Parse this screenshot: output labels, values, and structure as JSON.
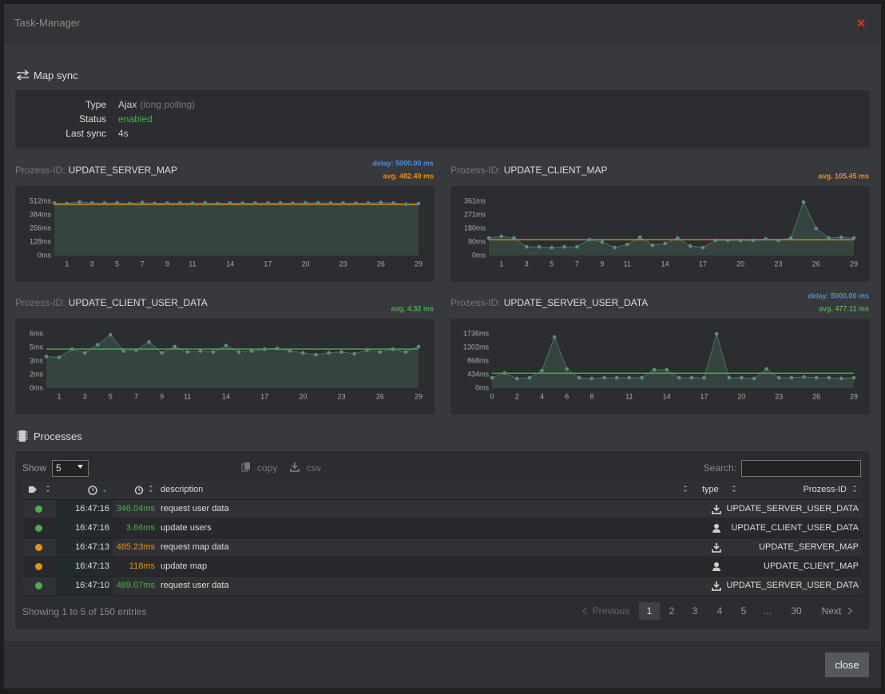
{
  "modal": {
    "title": "Task-Manager",
    "close_button": "close"
  },
  "map_sync": {
    "heading": "Map sync",
    "rows": [
      {
        "label": "Type",
        "value": "Ajax",
        "note": "(long polling)"
      },
      {
        "label": "Status",
        "value": "enabled",
        "value_color": "#4cae4c"
      },
      {
        "label": "Last sync",
        "value": "4s"
      }
    ]
  },
  "charts": [
    {
      "type": "area",
      "prefix": "Prozess-ID:",
      "name": "UPDATE_SERVER_MAP",
      "delay_label": "delay: 5000.00 ms",
      "avg": {
        "value": 482.4,
        "label": "avg. 482.40 ms",
        "color": "#e8901a"
      },
      "x": [
        0,
        1,
        2,
        3,
        4,
        5,
        6,
        7,
        8,
        9,
        10,
        11,
        12,
        13,
        14,
        15,
        16,
        17,
        18,
        19,
        20,
        21,
        22,
        23,
        24,
        25,
        26,
        27,
        28,
        29
      ],
      "values": [
        495,
        490,
        505,
        495,
        495,
        497,
        490,
        500,
        492,
        495,
        495,
        493,
        497,
        490,
        495,
        493,
        495,
        495,
        495,
        493,
        497,
        497,
        495,
        495,
        493,
        495,
        500,
        495,
        485,
        490
      ],
      "xlim": [
        0,
        29
      ],
      "ylim": [
        0,
        512
      ],
      "xticks": [
        1,
        3,
        5,
        7,
        9,
        11,
        14,
        17,
        20,
        23,
        26,
        29
      ],
      "yticks": [
        {
          "value": 0,
          "label": "0ms"
        },
        {
          "value": 128,
          "label": "128ms"
        },
        {
          "value": 256,
          "label": "256ms"
        },
        {
          "value": 384,
          "label": "384ms"
        },
        {
          "value": 512,
          "label": "512ms"
        }
      ]
    },
    {
      "type": "area",
      "prefix": "Prozess-ID:",
      "name": "UPDATE_CLIENT_MAP",
      "avg": {
        "value": 105.45,
        "label": "avg. 105.45 ms",
        "color": "#e8901a"
      },
      "x": [
        0,
        1,
        2,
        3,
        4,
        5,
        6,
        7,
        8,
        9,
        10,
        11,
        12,
        13,
        14,
        15,
        16,
        17,
        18,
        19,
        20,
        21,
        22,
        23,
        24,
        25,
        26,
        27,
        28,
        29
      ],
      "values": [
        117,
        128,
        117,
        58,
        58,
        53,
        58,
        58,
        106,
        90,
        53,
        74,
        122,
        69,
        80,
        117,
        64,
        53,
        101,
        101,
        101,
        101,
        111,
        101,
        117,
        355,
        180,
        117,
        122,
        117
      ],
      "xlim": [
        0,
        29
      ],
      "ylim": [
        0,
        361
      ],
      "xticks": [
        1,
        3,
        5,
        7,
        9,
        11,
        14,
        17,
        20,
        23,
        26,
        29
      ],
      "yticks": [
        {
          "value": 0,
          "label": "0ms"
        },
        {
          "value": 90,
          "label": "90ms"
        },
        {
          "value": 180,
          "label": "180ms"
        },
        {
          "value": 271,
          "label": "271ms"
        },
        {
          "value": 361,
          "label": "361ms"
        }
      ]
    },
    {
      "type": "area",
      "prefix": "Prozess-ID:",
      "name": "UPDATE_CLIENT_USER_DATA",
      "avg": {
        "value": 4.32,
        "label": "avg. 4.32 ms",
        "color": "#4cae4c"
      },
      "x": [
        0,
        1,
        2,
        3,
        4,
        5,
        6,
        7,
        8,
        9,
        10,
        11,
        12,
        13,
        14,
        15,
        16,
        17,
        18,
        19,
        20,
        21,
        22,
        23,
        24,
        25,
        26,
        27,
        28,
        29
      ],
      "values": [
        3.5,
        3.4,
        4.3,
        3.9,
        4.8,
        5.9,
        4.1,
        4.2,
        5.1,
        3.9,
        4.6,
        4.0,
        4.1,
        4.0,
        4.7,
        4.0,
        4.1,
        4.3,
        4.4,
        4.1,
        3.9,
        3.7,
        3.9,
        4.0,
        3.8,
        4.2,
        4.0,
        4.3,
        4.0,
        4.6
      ],
      "xlim": [
        0,
        29
      ],
      "ylim": [
        0,
        6
      ],
      "xticks": [
        1,
        3,
        5,
        7,
        9,
        11,
        14,
        17,
        20,
        23,
        26,
        29
      ],
      "yticks": [
        {
          "value": 0,
          "label": "0ms"
        },
        {
          "value": 1.5,
          "label": "2ms"
        },
        {
          "value": 3,
          "label": "3ms"
        },
        {
          "value": 4.5,
          "label": "5ms"
        },
        {
          "value": 6,
          "label": "6ms"
        }
      ]
    },
    {
      "type": "area",
      "prefix": "Prozess-ID:",
      "name": "UPDATE_SERVER_USER_DATA",
      "delay_label": "delay: 5000.00 ms",
      "avg": {
        "value": 477.11,
        "label": "avg. 477.11 ms",
        "color": "#4cae4c"
      },
      "x": [
        0,
        1,
        2,
        3,
        4,
        5,
        6,
        7,
        8,
        9,
        10,
        11,
        12,
        13,
        14,
        15,
        16,
        17,
        18,
        19,
        20,
        21,
        22,
        23,
        24,
        25,
        26,
        27,
        28,
        29
      ],
      "values": [
        332,
        485,
        307,
        332,
        562,
        1634,
        613,
        332,
        307,
        332,
        332,
        332,
        332,
        587,
        587,
        332,
        332,
        332,
        1736,
        332,
        332,
        307,
        613,
        332,
        332,
        358,
        332,
        332,
        307,
        332
      ],
      "xlim": [
        0,
        29
      ],
      "ylim": [
        0,
        1736
      ],
      "xticks": [
        0,
        2,
        4,
        6,
        8,
        11,
        14,
        17,
        20,
        23,
        26,
        29
      ],
      "yticks": [
        {
          "value": 0,
          "label": "0ms"
        },
        {
          "value": 434,
          "label": "434ms"
        },
        {
          "value": 868,
          "label": "868ms"
        },
        {
          "value": 1302,
          "label": "1302ms"
        },
        {
          "value": 1736,
          "label": "1736ms"
        }
      ]
    }
  ],
  "processes": {
    "heading": "Processes",
    "show_label": "Show",
    "page_length": "5",
    "copy": "copy",
    "csv": "csv",
    "search_label": "Search:",
    "columns": {
      "description": "description",
      "type": "type",
      "prozess_id": "Prozess-ID"
    },
    "rows": [
      {
        "status_color": "#4cae4c",
        "time": "16:47:16",
        "duration": "346.04ms",
        "description": "request user data",
        "type": "download",
        "prozess_id": "UPDATE_SERVER_USER_DATA"
      },
      {
        "status_color": "#4cae4c",
        "time": "16:47:16",
        "duration": "3.66ms",
        "description": "update users",
        "type": "user",
        "prozess_id": "UPDATE_CLIENT_USER_DATA"
      },
      {
        "status_color": "#e8901a",
        "time": "16:47:13",
        "duration": "485.23ms",
        "description": "request map data",
        "type": "download",
        "prozess_id": "UPDATE_SERVER_MAP"
      },
      {
        "status_color": "#e8901a",
        "time": "16:47:13",
        "duration": "118ms",
        "description": "update map",
        "type": "user",
        "prozess_id": "UPDATE_CLIENT_MAP"
      },
      {
        "status_color": "#4cae4c",
        "time": "16:47:10",
        "duration": "489.07ms",
        "description": "request user data",
        "type": "download",
        "prozess_id": "UPDATE_SERVER_USER_DATA"
      }
    ],
    "info": "Showing 1 to 5 of 150 entries",
    "pagination": {
      "previous": "Previous",
      "pages": [
        "1",
        "2",
        "3",
        "4",
        "5",
        "…",
        "30"
      ],
      "active": 0,
      "next": "Next"
    }
  }
}
